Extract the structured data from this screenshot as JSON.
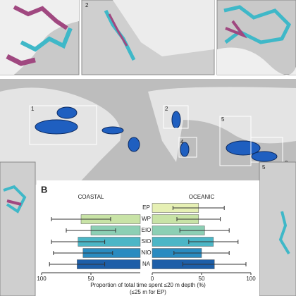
{
  "panel_label": "B",
  "map_labels": {
    "world": [
      "1",
      "2",
      "3",
      "4",
      "5"
    ],
    "insets": [
      "2",
      "5"
    ]
  },
  "chart_data": {
    "type": "butterfly",
    "x_label": "Proportion of total time spent ≤20 m depth (%)",
    "x_label_note": "(≤25 m for EP)",
    "categories": [
      "EP",
      "WP",
      "EIO",
      "SIO",
      "NIO",
      "NA"
    ],
    "colors": [
      "#e6f0b4",
      "#c8e3a6",
      "#8ccfb4",
      "#4cb6c6",
      "#2a8bc0",
      "#1d5ea8"
    ],
    "series": [
      {
        "name": "COASTAL",
        "values": [
          null,
          60,
          50,
          63,
          58,
          64
        ],
        "errors": [
          null,
          30,
          25,
          27,
          30,
          28
        ],
        "xlim": [
          100,
          0
        ],
        "xticks": [
          100,
          50
        ]
      },
      {
        "name": "OCEANIC",
        "values": [
          47,
          47,
          53,
          62,
          50,
          63
        ],
        "errors": [
          26,
          22,
          25,
          25,
          28,
          32
        ],
        "xlim": [
          0,
          100
        ],
        "xticks": [
          0,
          50,
          100
        ]
      }
    ]
  }
}
